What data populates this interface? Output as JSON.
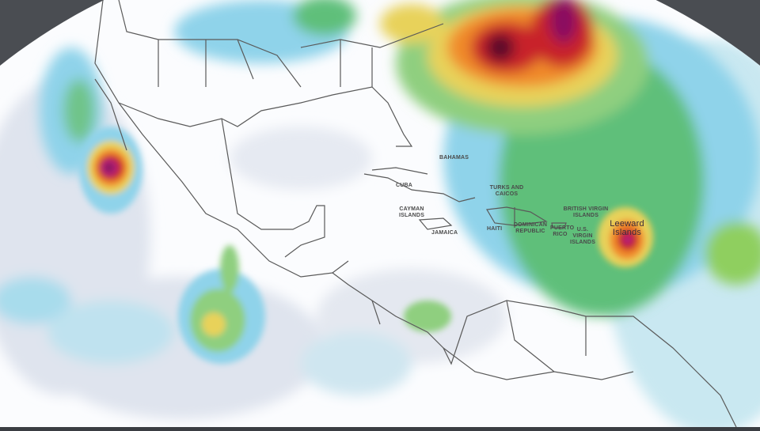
{
  "map": {
    "type": "precipitation-forecast-globe",
    "colors": {
      "light": "#dfe4ee",
      "cyan": "#8fd3ea",
      "green": "#5fbf7a",
      "yellow": "#e8d25a",
      "orange": "#f08a2a",
      "red": "#c8202a",
      "maroon": "#5a0a2a",
      "magenta": "#b0207a",
      "border": "#555555"
    },
    "labels": {
      "bahamas": "BAHAMAS",
      "cuba": "CUBA",
      "turks_caicos": "TURKS AND CAICOS",
      "cayman": "CAYMAN ISLANDS",
      "jamaica": "JAMAICA",
      "haiti": "HAITI",
      "dominican": "DOMINICAN REPUBLIC",
      "puerto_rico": "PUERTO RICO",
      "bvi": "BRITISH VIRGIN ISLANDS",
      "usvi": "U.S. VIRGIN ISLANDS",
      "leeward": "Leeward Islands"
    }
  }
}
